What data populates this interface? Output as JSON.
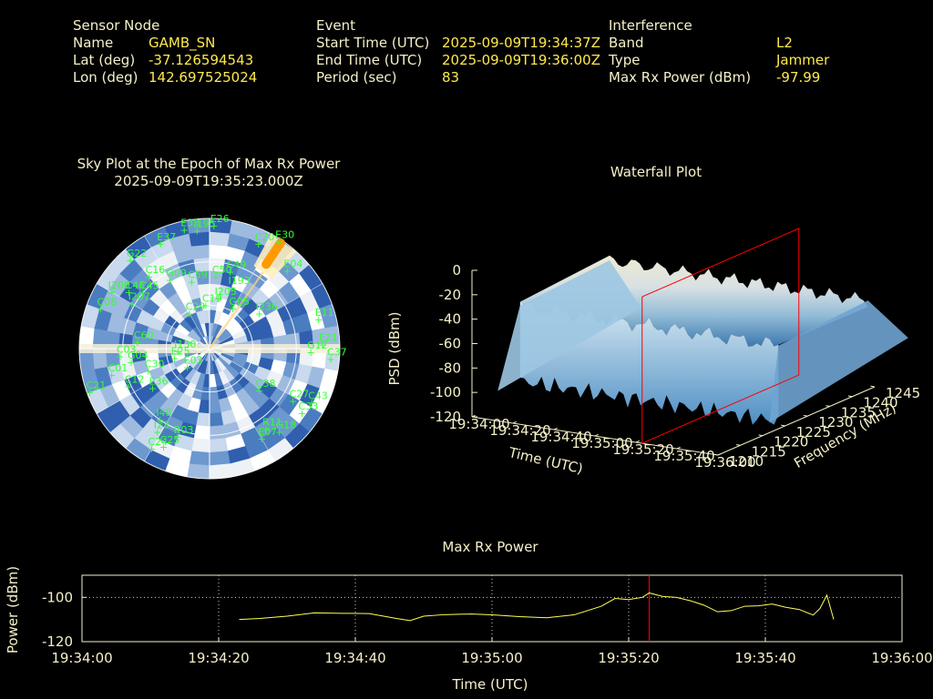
{
  "info": {
    "sensor": {
      "heading": "Sensor Node",
      "rows": [
        {
          "label": "Name",
          "value": "GAMB_SN"
        },
        {
          "label": "Lat (deg)",
          "value": "-37.126594543"
        },
        {
          "label": "Lon (deg)",
          "value": "142.697525024"
        }
      ]
    },
    "event": {
      "heading": "Event",
      "rows": [
        {
          "label": "Start Time (UTC)",
          "value": "2025-09-09T19:34:37Z"
        },
        {
          "label": "End Time (UTC)",
          "value": "2025-09-09T19:36:00Z"
        },
        {
          "label": "Period (sec)",
          "value": "83"
        }
      ]
    },
    "interference": {
      "heading": "Interference",
      "rows": [
        {
          "label": "Band",
          "value": "L2"
        },
        {
          "label": "Type",
          "value": "Jammer"
        },
        {
          "label": "Max Rx Power (dBm)",
          "value": "-97.99"
        }
      ]
    }
  },
  "colors": {
    "background": "#000000",
    "label": "#f5f0c8",
    "value": "#ffe94d",
    "satellite": "#33ff33",
    "marker": "#ff0000",
    "trace": "#ffff55",
    "jammer": "#ff9900"
  },
  "chart_data": [
    {
      "type": "scatter",
      "name": "sky-plot",
      "title": "Sky Plot at the Epoch of Max Rx Power",
      "subtitle": "2025-09-09T19:35:23.000Z",
      "jammer_bearing_deg": 35,
      "satellites": [
        {
          "id": "E26",
          "az": 2,
          "el": 5
        },
        {
          "id": "I195",
          "az": 354,
          "el": 8
        },
        {
          "id": "E33",
          "az": 348,
          "el": 6
        },
        {
          "id": "E37",
          "az": 335,
          "el": 10
        },
        {
          "id": "G22",
          "az": 318,
          "el": 8
        },
        {
          "id": "C20",
          "az": 25,
          "el": 10
        },
        {
          "id": "E30",
          "az": 33,
          "el": 2
        },
        {
          "id": "E04",
          "az": 45,
          "el": 14
        },
        {
          "id": "C16",
          "az": 320,
          "el": 25
        },
        {
          "id": "C49",
          "az": 15,
          "el": 35
        },
        {
          "id": "C50",
          "az": 5,
          "el": 40
        },
        {
          "id": "C59",
          "az": 345,
          "el": 42
        },
        {
          "id": "G09",
          "az": 330,
          "el": 35
        },
        {
          "id": "I193",
          "az": 20,
          "el": 45
        },
        {
          "id": "I205",
          "az": 10,
          "el": 55
        },
        {
          "id": "C19",
          "az": 355,
          "el": 60
        },
        {
          "id": "G05",
          "az": 30,
          "el": 58
        },
        {
          "id": "I236",
          "az": 55,
          "el": 48
        },
        {
          "id": "E11",
          "az": 75,
          "el": 12
        },
        {
          "id": "I200",
          "az": 300,
          "el": 12
        },
        {
          "id": "C46",
          "az": 305,
          "el": 22
        },
        {
          "id": "C08",
          "az": 290,
          "el": 10
        },
        {
          "id": "C45",
          "az": 310,
          "el": 30
        },
        {
          "id": "I207",
          "az": 300,
          "el": 28
        },
        {
          "id": "C60",
          "az": 275,
          "el": 40
        },
        {
          "id": "G04",
          "az": 260,
          "el": 35
        },
        {
          "id": "C03",
          "az": 265,
          "el": 28
        },
        {
          "id": "C01",
          "az": 255,
          "el": 20
        },
        {
          "id": "C12",
          "az": 245,
          "el": 28
        },
        {
          "id": "C30",
          "az": 250,
          "el": 45
        },
        {
          "id": "E36",
          "az": 235,
          "el": 42
        },
        {
          "id": "C29",
          "az": 330,
          "el": 62
        },
        {
          "id": "E03",
          "az": 230,
          "el": 70
        },
        {
          "id": "E25",
          "az": 255,
          "el": 65
        },
        {
          "id": "I130",
          "az": 265,
          "el": 68
        },
        {
          "id": "C21",
          "az": 250,
          "el": 2
        },
        {
          "id": "C38",
          "az": 130,
          "el": 45
        },
        {
          "id": "G12",
          "az": 92,
          "el": 20
        },
        {
          "id": "E21",
          "az": 88,
          "el": 12
        },
        {
          "id": "C37",
          "az": 95,
          "el": 6
        },
        {
          "id": "C27",
          "az": 122,
          "el": 22
        },
        {
          "id": "C33",
          "az": 125,
          "el": 12
        },
        {
          "id": "C43",
          "az": 118,
          "el": 10
        },
        {
          "id": "R11",
          "az": 145,
          "el": 22
        },
        {
          "id": "E07",
          "az": 150,
          "el": 18
        },
        {
          "id": "G18",
          "az": 140,
          "el": 15
        },
        {
          "id": "I48",
          "az": 215,
          "el": 30
        },
        {
          "id": "R03",
          "az": 200,
          "el": 25
        },
        {
          "id": "I23",
          "az": 212,
          "el": 22
        },
        {
          "id": "C25",
          "az": 205,
          "el": 15
        },
        {
          "id": "C24",
          "az": 210,
          "el": 10
        }
      ]
    },
    {
      "type": "surface",
      "name": "waterfall",
      "title": "Waterfall Plot",
      "xlabel": "Time (UTC)",
      "ylabel": "Frequency (MHz)",
      "zlabel": "PSD (dBm)",
      "x_ticks": [
        "19:34:00",
        "19:34:20",
        "19:34:40",
        "19:35:00",
        "19:35:20",
        "19:35:40",
        "19:36:00"
      ],
      "y_ticks": [
        1210,
        1215,
        1220,
        1225,
        1230,
        1235,
        1240,
        1245
      ],
      "z_ticks": [
        0,
        -20,
        -40,
        -60,
        -80,
        -100,
        -120
      ],
      "zlim": [
        -120,
        0
      ],
      "marker_time": "19:35:23"
    },
    {
      "type": "line",
      "name": "max-rx-power",
      "title": "Max Rx Power",
      "xlabel": "Time (UTC)",
      "ylabel": "Power (dBm)",
      "x_ticks": [
        "19:34:00",
        "19:34:20",
        "19:34:40",
        "19:35:00",
        "19:35:20",
        "19:35:40",
        "19:36:00"
      ],
      "y_ticks": [
        -100,
        -120
      ],
      "xlim_sec": [
        0,
        120
      ],
      "ylim": [
        -120,
        -90
      ],
      "marker_sec": 83,
      "series": [
        {
          "x": [
            23,
            26,
            30,
            34,
            38,
            42,
            46,
            48,
            50,
            53,
            57,
            60,
            64,
            68,
            72,
            76,
            78,
            80,
            82,
            83,
            85,
            87,
            89,
            91,
            93,
            95,
            97,
            99,
            101,
            103,
            105,
            107,
            108,
            109,
            110
          ],
          "y": [
            -110,
            -109.5,
            -108.5,
            -107,
            -107.2,
            -107.3,
            -109.5,
            -110.5,
            -108.5,
            -107.8,
            -107.5,
            -107.9,
            -108.7,
            -109.2,
            -107.9,
            -104,
            -100.5,
            -101,
            -100,
            -98,
            -99.6,
            -100,
            -101.5,
            -103.5,
            -106.5,
            -106,
            -104,
            -103.8,
            -103,
            -104.5,
            -105.5,
            -108,
            -105,
            -99,
            -110
          ]
        }
      ]
    }
  ]
}
